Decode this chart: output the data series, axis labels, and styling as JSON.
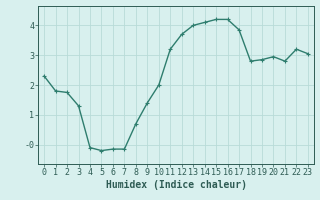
{
  "x": [
    0,
    1,
    2,
    3,
    4,
    5,
    6,
    7,
    8,
    9,
    10,
    11,
    12,
    13,
    14,
    15,
    16,
    17,
    18,
    19,
    20,
    21,
    22,
    23
  ],
  "y": [
    2.3,
    1.8,
    1.75,
    1.3,
    -0.1,
    -0.2,
    -0.15,
    -0.15,
    0.7,
    1.4,
    2.0,
    3.2,
    3.7,
    4.0,
    4.1,
    4.2,
    4.2,
    3.85,
    2.8,
    2.85,
    2.95,
    2.8,
    3.2,
    3.05
  ],
  "line_color": "#2e7d6e",
  "marker": "+",
  "markersize": 3,
  "linewidth": 1.0,
  "bg_color": "#d8f0ee",
  "grid_color": "#b8dbd8",
  "xlabel": "Humidex (Indice chaleur)",
  "ylabel": "",
  "xlim": [
    -0.5,
    23.5
  ],
  "ylim": [
    -0.65,
    4.65
  ],
  "yticks": [
    0,
    1,
    2,
    3,
    4
  ],
  "ytick_labels": [
    "-0",
    "1",
    "2",
    "3",
    "4"
  ],
  "xticks": [
    0,
    1,
    2,
    3,
    4,
    5,
    6,
    7,
    8,
    9,
    10,
    11,
    12,
    13,
    14,
    15,
    16,
    17,
    18,
    19,
    20,
    21,
    22,
    23
  ],
  "xlabel_fontsize": 7,
  "tick_fontsize": 6,
  "axis_color": "#2e5c54",
  "tick_color": "#2e5c54",
  "spine_color": "#2e5c54"
}
